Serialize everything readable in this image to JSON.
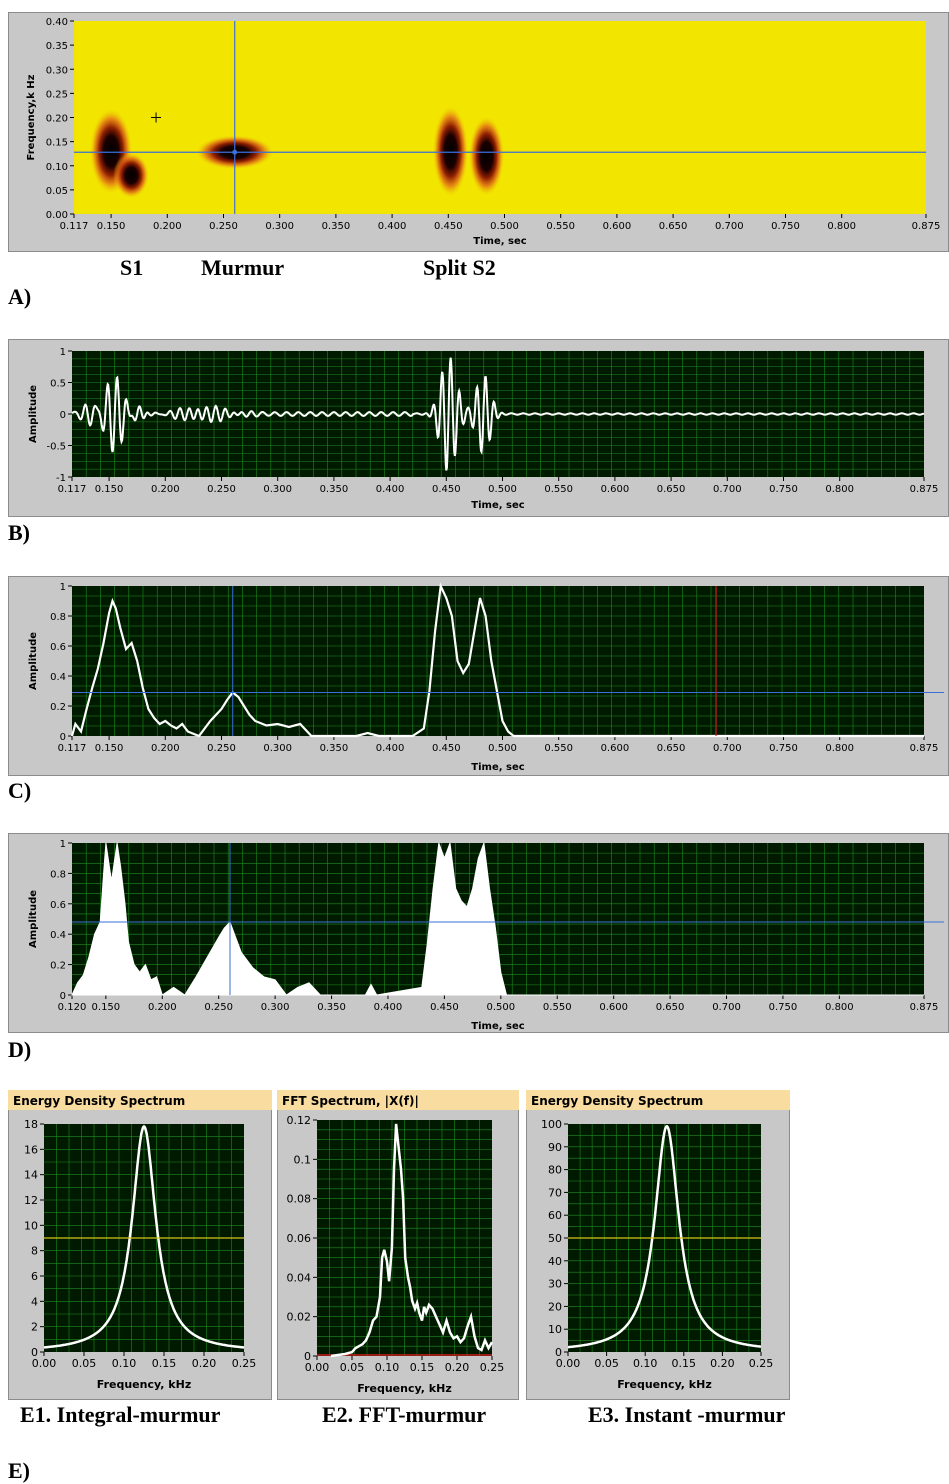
{
  "labels": {
    "s1": "S1",
    "murmur": "Murmur",
    "split_s2": "Split S2",
    "panel_a": "A)",
    "panel_b": "B)",
    "panel_c": "C)",
    "panel_d": "D)",
    "panel_e": "E)",
    "e1": "E1. Integral-murmur",
    "e2": "E2.  FFT-murmur",
    "e3": "E3. Instant -murmur"
  },
  "colors": {
    "plot_bg": "#001a00",
    "grid": "#1f8a1f",
    "trace": "#ffffff",
    "cursor": "#3a6fd8",
    "marker_red": "#c81e1e",
    "level_yellow": "#d8c21a",
    "spectrogram_bg": "#f2e600",
    "title_bar": "#f8dca0",
    "frame": "#c8c8c8"
  },
  "chart_data": [
    {
      "id": "A",
      "type": "heatmap",
      "title": "",
      "xlabel": "Time, sec",
      "ylabel": "Frequency,k Hz",
      "xlim": [
        0.117,
        0.875
      ],
      "ylim": [
        0,
        0.4
      ],
      "xticks": [
        "0.117",
        "0.150",
        "0.200",
        "0.250",
        "0.300",
        "0.350",
        "0.400",
        "0.450",
        "0.500",
        "0.550",
        "0.600",
        "0.650",
        "0.700",
        "0.750",
        "0.800",
        "0.875"
      ],
      "xtick_values": [
        0.117,
        0.15,
        0.2,
        0.25,
        0.3,
        0.35,
        0.4,
        0.45,
        0.5,
        0.55,
        0.6,
        0.65,
        0.7,
        0.75,
        0.8,
        0.875
      ],
      "yticks": [
        "0.00",
        "0.05",
        "0.10",
        "0.15",
        "0.20",
        "0.25",
        "0.30",
        "0.35",
        "0.40"
      ],
      "ytick_values": [
        0,
        0.05,
        0.1,
        0.15,
        0.2,
        0.25,
        0.3,
        0.35,
        0.4
      ],
      "blobs": [
        {
          "t": 0.15,
          "f": 0.13,
          "dt": 0.012,
          "df": 0.075
        },
        {
          "t": 0.168,
          "f": 0.08,
          "dt": 0.01,
          "df": 0.04
        },
        {
          "t": 0.26,
          "f": 0.128,
          "dt": 0.022,
          "df": 0.03
        },
        {
          "t": 0.452,
          "f": 0.13,
          "dt": 0.01,
          "df": 0.08
        },
        {
          "t": 0.484,
          "f": 0.12,
          "dt": 0.01,
          "df": 0.07
        }
      ],
      "cursor": {
        "x": 0.26,
        "y": 0.128
      }
    },
    {
      "id": "B",
      "type": "line",
      "xlabel": "Time, sec",
      "ylabel": "Amplitude",
      "xlim": [
        0.117,
        0.875
      ],
      "ylim": [
        -1,
        1
      ],
      "xticks": [
        "0.117",
        "0.150",
        "0.200",
        "0.250",
        "0.300",
        "0.350",
        "0.400",
        "0.450",
        "0.500",
        "0.550",
        "0.600",
        "0.650",
        "0.700",
        "0.750",
        "0.800",
        "0.875"
      ],
      "xtick_values": [
        0.117,
        0.15,
        0.2,
        0.25,
        0.3,
        0.35,
        0.4,
        0.45,
        0.5,
        0.55,
        0.6,
        0.65,
        0.7,
        0.75,
        0.8,
        0.875
      ],
      "yticks": [
        "-1",
        "-0.5",
        "0",
        "0.5",
        "1"
      ],
      "ytick_values": [
        -1,
        -0.5,
        0,
        0.5,
        1
      ],
      "bursts": [
        {
          "t": 0.155,
          "amp": 0.62,
          "w": 0.012,
          "freq": 120
        },
        {
          "t": 0.135,
          "amp": 0.18,
          "w": 0.01,
          "freq": 120
        },
        {
          "t": 0.175,
          "amp": 0.18,
          "w": 0.008,
          "freq": 120
        },
        {
          "t": 0.235,
          "amp": 0.11,
          "w": 0.03,
          "freq": 125
        },
        {
          "t": 0.452,
          "amp": 0.92,
          "w": 0.01,
          "freq": 130
        },
        {
          "t": 0.483,
          "amp": 0.62,
          "w": 0.009,
          "freq": 130
        }
      ]
    },
    {
      "id": "C",
      "type": "line",
      "xlabel": "Time, sec",
      "ylabel": "Amplitude",
      "xlim": [
        0.117,
        0.875
      ],
      "ylim": [
        0,
        1
      ],
      "xticks": [
        "0.117",
        "0.150",
        "0.200",
        "0.250",
        "0.300",
        "0.350",
        "0.400",
        "0.450",
        "0.500",
        "0.550",
        "0.600",
        "0.650",
        "0.700",
        "0.750",
        "0.800",
        "0.875"
      ],
      "xtick_values": [
        0.117,
        0.15,
        0.2,
        0.25,
        0.3,
        0.35,
        0.4,
        0.45,
        0.5,
        0.55,
        0.6,
        0.65,
        0.7,
        0.75,
        0.8,
        0.875
      ],
      "yticks": [
        "0",
        "0.2",
        "0.4",
        "0.6",
        "0.8",
        "1"
      ],
      "ytick_values": [
        0,
        0.2,
        0.4,
        0.6,
        0.8,
        1
      ],
      "x": [
        0.117,
        0.12,
        0.125,
        0.13,
        0.135,
        0.14,
        0.145,
        0.15,
        0.153,
        0.156,
        0.16,
        0.165,
        0.17,
        0.175,
        0.18,
        0.185,
        0.19,
        0.195,
        0.2,
        0.205,
        0.21,
        0.215,
        0.22,
        0.23,
        0.24,
        0.25,
        0.255,
        0.26,
        0.265,
        0.27,
        0.275,
        0.28,
        0.29,
        0.3,
        0.31,
        0.32,
        0.325,
        0.33,
        0.335,
        0.35,
        0.36,
        0.37,
        0.38,
        0.39,
        0.4,
        0.41,
        0.42,
        0.43,
        0.435,
        0.44,
        0.445,
        0.45,
        0.455,
        0.46,
        0.465,
        0.47,
        0.475,
        0.48,
        0.485,
        0.49,
        0.495,
        0.5,
        0.505,
        0.51,
        0.52,
        0.6,
        0.7,
        0.8,
        0.875
      ],
      "y": [
        0,
        0.08,
        0.03,
        0.18,
        0.32,
        0.45,
        0.62,
        0.82,
        0.9,
        0.85,
        0.72,
        0.58,
        0.62,
        0.5,
        0.32,
        0.18,
        0.12,
        0.08,
        0.1,
        0.07,
        0.05,
        0.08,
        0.03,
        0.0,
        0.1,
        0.18,
        0.24,
        0.29,
        0.26,
        0.2,
        0.14,
        0.1,
        0.07,
        0.08,
        0.06,
        0.08,
        0.04,
        0.0,
        0.0,
        0.0,
        0.0,
        0.0,
        0.02,
        0.0,
        0.0,
        0.0,
        0.0,
        0.05,
        0.3,
        0.7,
        1.0,
        0.92,
        0.8,
        0.5,
        0.42,
        0.48,
        0.7,
        0.92,
        0.8,
        0.5,
        0.3,
        0.1,
        0.03,
        0.0,
        0.0,
        0.0,
        0.0,
        0.0,
        0.0
      ],
      "cursor": {
        "x": 0.26,
        "y": 0.29
      },
      "marker_x": 0.69
    },
    {
      "id": "D",
      "type": "area",
      "xlabel": "Time, sec",
      "ylabel": "Amplitude",
      "xlim": [
        0.12,
        0.875
      ],
      "ylim": [
        0,
        1
      ],
      "xticks": [
        "0.120",
        "0.150",
        "0.200",
        "0.250",
        "0.300",
        "0.350",
        "0.400",
        "0.450",
        "0.500",
        "0.550",
        "0.600",
        "0.650",
        "0.700",
        "0.750",
        "0.800",
        "0.875"
      ],
      "xtick_values": [
        0.12,
        0.15,
        0.2,
        0.25,
        0.3,
        0.35,
        0.4,
        0.45,
        0.5,
        0.55,
        0.6,
        0.65,
        0.7,
        0.75,
        0.8,
        0.875
      ],
      "yticks": [
        "0",
        "0.2",
        "0.4",
        "0.6",
        "0.8",
        "1"
      ],
      "ytick_values": [
        0,
        0.2,
        0.4,
        0.6,
        0.8,
        1
      ],
      "x": [
        0.12,
        0.125,
        0.13,
        0.135,
        0.14,
        0.145,
        0.148,
        0.15,
        0.155,
        0.16,
        0.163,
        0.167,
        0.17,
        0.175,
        0.18,
        0.185,
        0.19,
        0.195,
        0.2,
        0.21,
        0.22,
        0.23,
        0.24,
        0.25,
        0.255,
        0.26,
        0.265,
        0.27,
        0.28,
        0.29,
        0.3,
        0.31,
        0.32,
        0.33,
        0.34,
        0.38,
        0.385,
        0.39,
        0.43,
        0.435,
        0.44,
        0.445,
        0.45,
        0.455,
        0.46,
        0.465,
        0.47,
        0.475,
        0.48,
        0.485,
        0.49,
        0.495,
        0.5,
        0.505,
        0.875
      ],
      "y": [
        0,
        0.08,
        0.13,
        0.25,
        0.4,
        0.48,
        0.8,
        1.0,
        0.75,
        1.0,
        0.85,
        0.6,
        0.35,
        0.2,
        0.15,
        0.2,
        0.1,
        0.12,
        0.0,
        0.05,
        0.0,
        0.12,
        0.25,
        0.38,
        0.44,
        0.48,
        0.38,
        0.28,
        0.18,
        0.12,
        0.1,
        0.0,
        0.05,
        0.08,
        0.0,
        0.0,
        0.07,
        0.0,
        0.05,
        0.35,
        0.7,
        1.0,
        0.9,
        1.0,
        0.7,
        0.62,
        0.58,
        0.7,
        0.9,
        1.0,
        0.7,
        0.45,
        0.15,
        0.0,
        0.0
      ],
      "cursor": {
        "x": 0.26,
        "y": 0.48
      }
    },
    {
      "id": "E1",
      "type": "line",
      "title": "Energy Density Spectrum",
      "xlabel": "Frequency, kHz",
      "xlim": [
        0,
        0.25
      ],
      "ylim": [
        0,
        18
      ],
      "xticks": [
        "0.00",
        "0.05",
        "0.10",
        "0.15",
        "0.20",
        "0.25"
      ],
      "xtick_values": [
        0,
        0.05,
        0.1,
        0.15,
        0.2,
        0.25
      ],
      "yticks": [
        "0",
        "2",
        "4",
        "6",
        "8",
        "10",
        "12",
        "14",
        "16",
        "18"
      ],
      "ytick_values": [
        0,
        2,
        4,
        6,
        8,
        10,
        12,
        14,
        16,
        18
      ],
      "peak": {
        "f": 0.125,
        "value": 17.8,
        "width": 0.018
      },
      "level": 9
    },
    {
      "id": "E2",
      "type": "line",
      "title": "FFT Spectrum, |X(f)|",
      "xlabel": "Frequency, kHz",
      "xlim": [
        0,
        0.25
      ],
      "ylim": [
        0,
        0.12
      ],
      "xticks": [
        "0.00",
        "0.05",
        "0.10",
        "0.15",
        "0.20",
        "0.25"
      ],
      "xtick_values": [
        0,
        0.05,
        0.1,
        0.15,
        0.2,
        0.25
      ],
      "yticks": [
        "0",
        "0.02",
        "0.04",
        "0.06",
        "0.08",
        "0.1",
        "0.12"
      ],
      "ytick_values": [
        0,
        0.02,
        0.04,
        0.06,
        0.08,
        0.1,
        0.12
      ],
      "x": [
        0.02,
        0.03,
        0.04,
        0.05,
        0.055,
        0.06,
        0.065,
        0.07,
        0.075,
        0.08,
        0.085,
        0.09,
        0.093,
        0.096,
        0.1,
        0.103,
        0.107,
        0.11,
        0.113,
        0.116,
        0.12,
        0.123,
        0.126,
        0.13,
        0.133,
        0.136,
        0.14,
        0.143,
        0.146,
        0.15,
        0.153,
        0.156,
        0.16,
        0.165,
        0.17,
        0.175,
        0.18,
        0.185,
        0.19,
        0.195,
        0.2,
        0.205,
        0.21,
        0.215,
        0.22,
        0.225,
        0.23,
        0.235,
        0.24,
        0.245,
        0.25
      ],
      "y": [
        0,
        0.0005,
        0.001,
        0.002,
        0.004,
        0.005,
        0.006,
        0.008,
        0.012,
        0.018,
        0.02,
        0.03,
        0.05,
        0.054,
        0.048,
        0.038,
        0.055,
        0.095,
        0.118,
        0.108,
        0.095,
        0.08,
        0.05,
        0.04,
        0.035,
        0.028,
        0.024,
        0.027,
        0.022,
        0.018,
        0.025,
        0.022,
        0.026,
        0.024,
        0.02,
        0.016,
        0.012,
        0.018,
        0.012,
        0.009,
        0.01,
        0.007,
        0.009,
        0.015,
        0.02,
        0.01,
        0.004,
        0.003,
        0.008,
        0.004,
        0.007
      ],
      "baseline_red": true
    },
    {
      "id": "E3",
      "type": "line",
      "title": "Energy Density Spectrum",
      "xlabel": "Frequency, kHz",
      "xlim": [
        0,
        0.25
      ],
      "ylim": [
        0,
        100
      ],
      "xticks": [
        "0.00",
        "0.05",
        "0.10",
        "0.15",
        "0.20",
        "0.25"
      ],
      "xtick_values": [
        0,
        0.05,
        0.1,
        0.15,
        0.2,
        0.25
      ],
      "yticks": [
        "0",
        "10",
        "20",
        "30",
        "40",
        "50",
        "60",
        "70",
        "80",
        "90",
        "100"
      ],
      "ytick_values": [
        0,
        10,
        20,
        30,
        40,
        50,
        60,
        70,
        80,
        90,
        100
      ],
      "peak": {
        "f": 0.128,
        "value": 99,
        "width": 0.019
      },
      "level": 50
    }
  ]
}
